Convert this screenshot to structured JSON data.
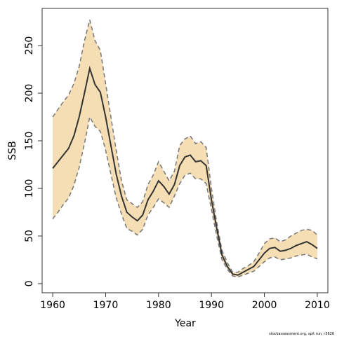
{
  "chart_data": {
    "type": "line",
    "xlabel": "Year",
    "ylabel": "SSB",
    "footnote": "stockassessment.org, spit run, r3626",
    "x": [
      1960,
      1961,
      1962,
      1963,
      1964,
      1965,
      1966,
      1967,
      1968,
      1969,
      1970,
      1971,
      1972,
      1973,
      1974,
      1975,
      1976,
      1977,
      1978,
      1979,
      1980,
      1981,
      1982,
      1983,
      1984,
      1985,
      1986,
      1987,
      1988,
      1989,
      1990,
      1991,
      1992,
      1993,
      1994,
      1995,
      1996,
      1997,
      1998,
      1999,
      2000,
      2001,
      2002,
      2003,
      2004,
      2005,
      2006,
      2007,
      2008,
      2009,
      2010
    ],
    "values": [
      121,
      128,
      135,
      142,
      155,
      175,
      200,
      226,
      209,
      201,
      175,
      145,
      115,
      92,
      75,
      70,
      66,
      72,
      88,
      97,
      108,
      102,
      94,
      104,
      124,
      133,
      135,
      128,
      129,
      124,
      88,
      58,
      30,
      18,
      10,
      9,
      12,
      15,
      18,
      25,
      32,
      37,
      38,
      34,
      35,
      37,
      40,
      42,
      44,
      41,
      37
    ],
    "upper": [
      175,
      183,
      191,
      198,
      210,
      228,
      255,
      277,
      255,
      245,
      210,
      175,
      140,
      108,
      88,
      84,
      80,
      86,
      104,
      114,
      128,
      118,
      108,
      118,
      145,
      152,
      155,
      147,
      149,
      143,
      100,
      64,
      35,
      22,
      12,
      12,
      16,
      19,
      23,
      32,
      42,
      47,
      48,
      44,
      46,
      50,
      53,
      56,
      57,
      56,
      51
    ],
    "lower": [
      68,
      75,
      83,
      90,
      103,
      122,
      147,
      175,
      165,
      160,
      140,
      115,
      90,
      73,
      58,
      55,
      51,
      57,
      72,
      80,
      89,
      85,
      80,
      92,
      105,
      114,
      116,
      110,
      110,
      105,
      78,
      50,
      25,
      15,
      8,
      7,
      9,
      11,
      13,
      18,
      23,
      27,
      28,
      25,
      26,
      27,
      29,
      30,
      31,
      28,
      26
    ],
    "color": "#333333",
    "band_color": "#f5deb3",
    "bound_color": "#777777",
    "xlim": [
      1958,
      2012
    ],
    "ylim": [
      -9.6,
      289
    ],
    "xticks": [
      1960,
      1970,
      1980,
      1990,
      2000,
      2010
    ],
    "yticks": [
      0,
      50,
      100,
      150,
      200,
      250
    ]
  }
}
